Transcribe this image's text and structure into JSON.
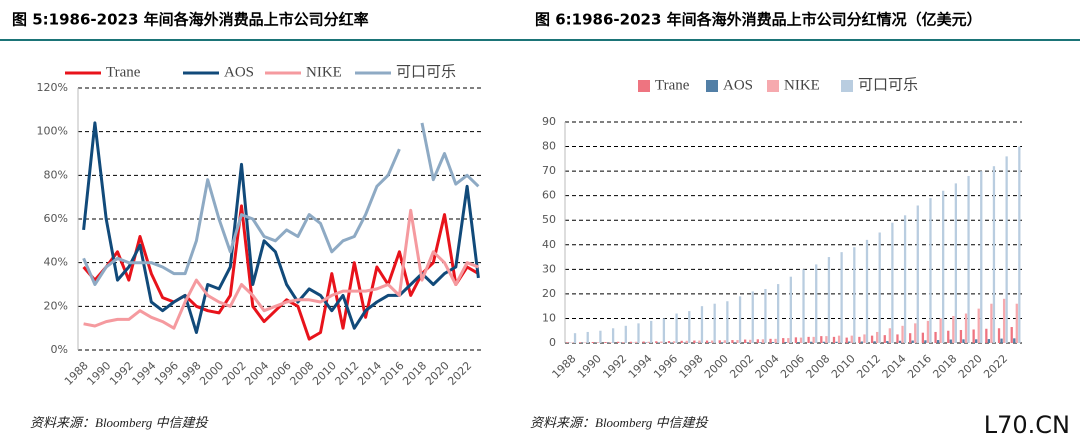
{
  "watermark": "L70.CN",
  "chart_data": [
    {
      "type": "line",
      "title": "图 5:1986-2023 年间各海外消费品上市公司分红率",
      "source": "资料来源：Bloomberg 中信建投",
      "categories": [
        "1988",
        null,
        "1990",
        null,
        "1992",
        null,
        "1994",
        null,
        "1996",
        null,
        "1998",
        null,
        "2000",
        null,
        "2002",
        null,
        "2004",
        null,
        "2006",
        null,
        "2008",
        null,
        "2010",
        null,
        "2012",
        null,
        "2014",
        null,
        "2016",
        null,
        "2018",
        null,
        "2020",
        null,
        "2022",
        null
      ],
      "series": [
        {
          "name": "Trane",
          "color": "#e8131b",
          "values": [
            38,
            32,
            38,
            45,
            32,
            52,
            35,
            24,
            22,
            25,
            20,
            18,
            17,
            25,
            66,
            20,
            13,
            18,
            23,
            20,
            5,
            8,
            35,
            10,
            40,
            15,
            38,
            30,
            45,
            25,
            35,
            40,
            62,
            30,
            38,
            35
          ]
        },
        {
          "name": "AOS",
          "color": "#114a7a",
          "values": [
            55,
            104,
            60,
            32,
            38,
            48,
            22,
            18,
            22,
            25,
            8,
            30,
            28,
            38,
            85,
            30,
            50,
            45,
            30,
            22,
            28,
            25,
            18,
            25,
            10,
            18,
            22,
            25,
            25,
            30,
            35,
            30,
            35,
            38,
            75,
            33
          ]
        },
        {
          "name": "NIKE",
          "color": "#f59a9f",
          "values": [
            12,
            11,
            13,
            14,
            14,
            18,
            15,
            13,
            10,
            22,
            32,
            25,
            22,
            20,
            30,
            25,
            18,
            20,
            22,
            23,
            23,
            22,
            25,
            27,
            27,
            27,
            28,
            30,
            25,
            64,
            32,
            45,
            40,
            30,
            40,
            38
          ]
        },
        {
          "name": "可口可乐",
          "color": "#8eaac4",
          "values": [
            42,
            30,
            38,
            42,
            40,
            40,
            40,
            38,
            35,
            35,
            50,
            78,
            60,
            45,
            62,
            60,
            52,
            50,
            55,
            52,
            62,
            58,
            45,
            50,
            52,
            62,
            75,
            80,
            92,
            null,
            104,
            78,
            90,
            76,
            80,
            75
          ]
        }
      ],
      "ylim": [
        0,
        120
      ],
      "yticks": [
        {
          "value": 0,
          "label": "0%"
        },
        {
          "value": 20,
          "label": "20%"
        },
        {
          "value": 40,
          "label": "40%"
        },
        {
          "value": 60,
          "label": "60%"
        },
        {
          "value": 80,
          "label": "80%"
        },
        {
          "value": 100,
          "label": "100%"
        },
        {
          "value": 120,
          "label": "120%"
        }
      ],
      "grid": true
    },
    {
      "type": "bar",
      "title": "图 6:1986-2023 年间各海外消费品上市公司分红情况（亿美元）",
      "source": "资料来源：Bloomberg 中信建投",
      "categories": [
        "1988",
        null,
        "1990",
        null,
        "1992",
        null,
        "1994",
        null,
        "1996",
        null,
        "1998",
        null,
        "2000",
        null,
        "2002",
        null,
        "2004",
        null,
        "2006",
        null,
        "2008",
        null,
        "2010",
        null,
        "2012",
        null,
        "2014",
        null,
        "2016",
        null,
        "2018",
        null,
        "2020",
        null,
        "2022",
        null
      ],
      "series": [
        {
          "name": "Trane",
          "color": "#ee7480",
          "values": [
            0.3,
            0.3,
            0.4,
            0.4,
            0.5,
            0.5,
            0.6,
            0.7,
            0.8,
            0.9,
            1,
            1,
            1.1,
            1.2,
            1.4,
            1.5,
            1.7,
            2,
            2.3,
            2.5,
            2.8,
            2.5,
            2.2,
            2.5,
            3,
            3.2,
            3.5,
            4,
            4.2,
            4.5,
            5,
            5.3,
            5.5,
            5.8,
            6,
            6.5
          ]
        },
        {
          "name": "AOS",
          "color": "#527fa6",
          "values": [
            0.1,
            0.1,
            0.1,
            0.1,
            0.1,
            0.1,
            0.2,
            0.2,
            0.2,
            0.2,
            0.2,
            0.3,
            0.3,
            0.3,
            0.3,
            0.3,
            0.4,
            0.4,
            0.4,
            0.5,
            0.5,
            0.5,
            0.6,
            0.6,
            0.7,
            0.8,
            0.9,
            1,
            1.1,
            1.2,
            1.4,
            1.5,
            1.5,
            1.6,
            1.8,
            1.9
          ]
        },
        {
          "name": "NIKE",
          "color": "#f6a9ae",
          "values": [
            0.2,
            0.2,
            0.3,
            0.3,
            0.4,
            0.5,
            0.5,
            0.6,
            0.7,
            0.9,
            1,
            1,
            1.1,
            1.2,
            1.3,
            1.5,
            1.7,
            2,
            2.2,
            2.5,
            2.8,
            3,
            3,
            3.5,
            4.5,
            6,
            7,
            8,
            9,
            10,
            11,
            12,
            14,
            16,
            18,
            16
          ]
        },
        {
          "name": "可口可乐",
          "color": "#b9cde0",
          "values": [
            4,
            4.5,
            5,
            6,
            7,
            8,
            9,
            10,
            12,
            13,
            15,
            16,
            17,
            19,
            21,
            22,
            24,
            27,
            30,
            32,
            35,
            37,
            39,
            42,
            45,
            49,
            52,
            56,
            59,
            62,
            65,
            68,
            70,
            72,
            76,
            80
          ]
        }
      ],
      "ylim": [
        0,
        90
      ],
      "yticks": [
        0,
        10,
        20,
        30,
        40,
        50,
        60,
        70,
        80,
        90
      ],
      "grid": true
    }
  ]
}
